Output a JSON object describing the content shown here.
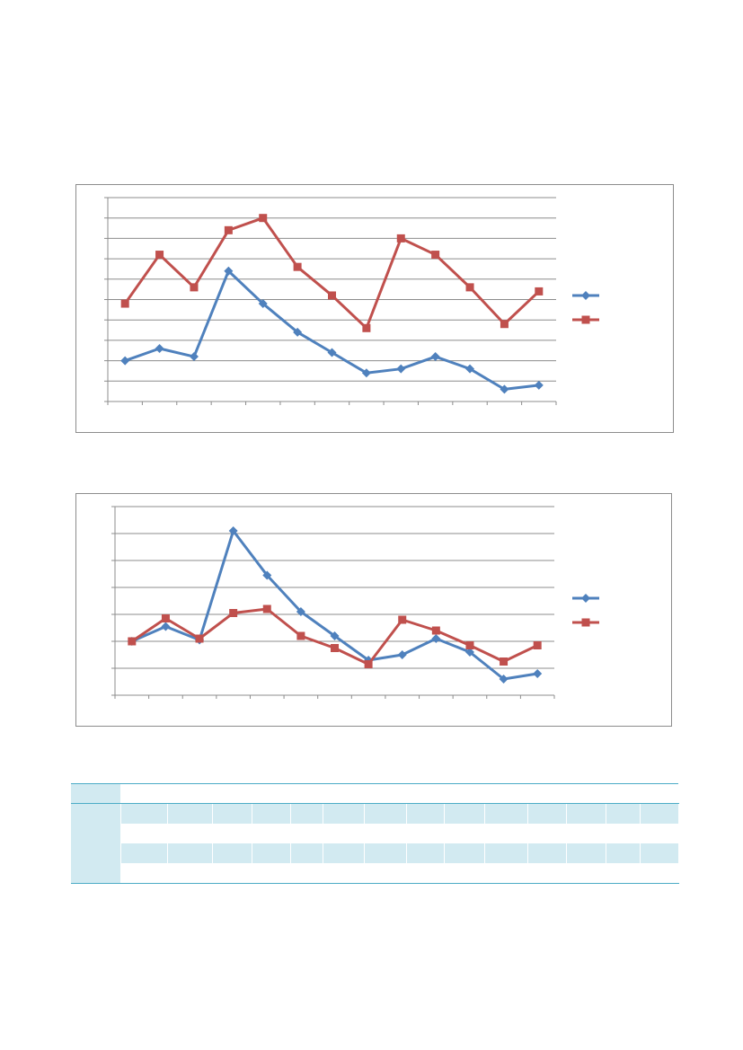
{
  "colors": {
    "series1": "#4f81bd",
    "series2": "#c0504d",
    "gridline": "#8c8c8c",
    "axis": "#8c8c8c",
    "table_accent": "#4bacc6",
    "table_band": "#d2eaf1"
  },
  "chart_data": [
    {
      "type": "line",
      "title": "",
      "xlabel": "",
      "ylabel": "",
      "ylim": [
        0,
        10
      ],
      "yticks": [
        0,
        1,
        2,
        3,
        4,
        5,
        6,
        7,
        8,
        9,
        10
      ],
      "grid": true,
      "legend": "right",
      "x": [
        1,
        2,
        3,
        4,
        5,
        6,
        7,
        8,
        9,
        10,
        11,
        12,
        13
      ],
      "series": [
        {
          "values": [
            2.0,
            2.6,
            2.2,
            6.4,
            4.8,
            3.4,
            2.4,
            1.4,
            1.6,
            2.2,
            1.6,
            0.6,
            0.8
          ],
          "marker": "diamond",
          "color": "#4f81bd"
        },
        {
          "values": [
            4.8,
            7.2,
            5.6,
            8.4,
            9.0,
            6.6,
            5.2,
            3.6,
            8.0,
            7.2,
            5.6,
            3.8,
            5.4
          ],
          "marker": "square",
          "color": "#c0504d"
        }
      ]
    },
    {
      "type": "line",
      "title": "",
      "xlabel": "",
      "ylabel": "",
      "ylim": [
        0,
        7
      ],
      "yticks": [
        0,
        1,
        2,
        3,
        4,
        5,
        6,
        7
      ],
      "grid": true,
      "legend": "right",
      "x": [
        1,
        2,
        3,
        4,
        5,
        6,
        7,
        8,
        9,
        10,
        11,
        12,
        13
      ],
      "series": [
        {
          "values": [
            2.0,
            2.55,
            2.05,
            6.1,
            4.45,
            3.1,
            2.2,
            1.3,
            1.5,
            2.1,
            1.6,
            0.6,
            0.8
          ],
          "marker": "diamond",
          "color": "#4f81bd"
        },
        {
          "values": [
            2.0,
            2.85,
            2.1,
            3.05,
            3.2,
            2.2,
            1.75,
            1.15,
            2.8,
            2.4,
            1.85,
            1.25,
            1.85
          ],
          "marker": "square",
          "color": "#c0504d"
        }
      ]
    }
  ],
  "table": {
    "columns": 15,
    "rows": 4
  }
}
